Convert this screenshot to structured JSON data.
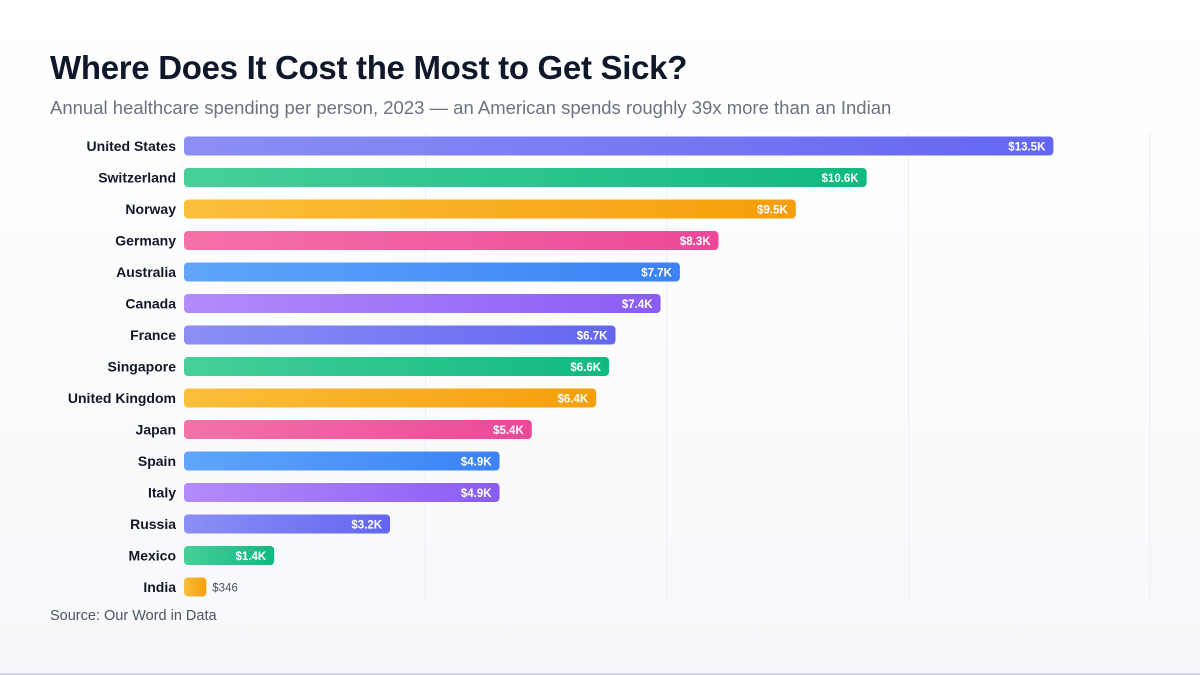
{
  "title": "Where Does It Cost the Most to Get Sick?",
  "subtitle": "Annual healthcare spending per person, 2023 — an American spends roughly 39x more than an Indian",
  "source": "Source: Our Word in Data",
  "palette": [
    [
      "#8b8ff5",
      "#6366f1"
    ],
    [
      "#47cf99",
      "#10b981"
    ],
    [
      "#fbbf3c",
      "#f59e0b"
    ],
    [
      "#f472a8",
      "#ec4899"
    ],
    [
      "#60a5fa",
      "#3b82f6"
    ],
    [
      "#b38bfa",
      "#8b5cf6"
    ]
  ],
  "chart_data": {
    "type": "bar",
    "orientation": "horizontal",
    "categories": [
      "United States",
      "Switzerland",
      "Norway",
      "Germany",
      "Australia",
      "Canada",
      "France",
      "Singapore",
      "United Kingdom",
      "Japan",
      "Spain",
      "Italy",
      "Russia",
      "Mexico",
      "India"
    ],
    "values": [
      13500,
      10600,
      9500,
      8300,
      7700,
      7400,
      6700,
      6600,
      6400,
      5400,
      4900,
      4900,
      3200,
      1400,
      346
    ],
    "labels": [
      "$13.5K",
      "$10.6K",
      "$9.5K",
      "$8.3K",
      "$7.7K",
      "$7.4K",
      "$6.7K",
      "$6.6K",
      "$6.4K",
      "$5.4K",
      "$4.9K",
      "$4.9K",
      "$3.2K",
      "$1.4K",
      "$346"
    ],
    "xlim": [
      0,
      15000
    ],
    "grid": true,
    "legend": "none"
  }
}
